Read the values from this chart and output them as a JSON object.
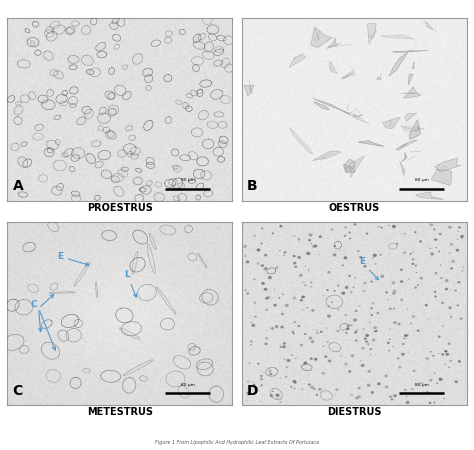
{
  "panel_labels": [
    "A",
    "B",
    "C",
    "D"
  ],
  "panel_titles": [
    "PROESTRUS",
    "OESTRUS",
    "METESTRUS",
    "DIESTRUS"
  ],
  "scale_bar_text": "80 μm",
  "figure_bg": "#ffffff",
  "annotation_color": "#5599cc",
  "subtitle_text": "Figure 1 From Lipophilic And Hydrophilic Leaf Extracts Of Portulaca",
  "bottom_text_color": "#555555",
  "panel_border_color": "#999999",
  "bg_level_A": 0.87,
  "bg_level_B": 0.92,
  "bg_level_C": 0.85,
  "bg_level_D": 0.88,
  "title_fontsize": 7.0,
  "label_fontsize": 10
}
